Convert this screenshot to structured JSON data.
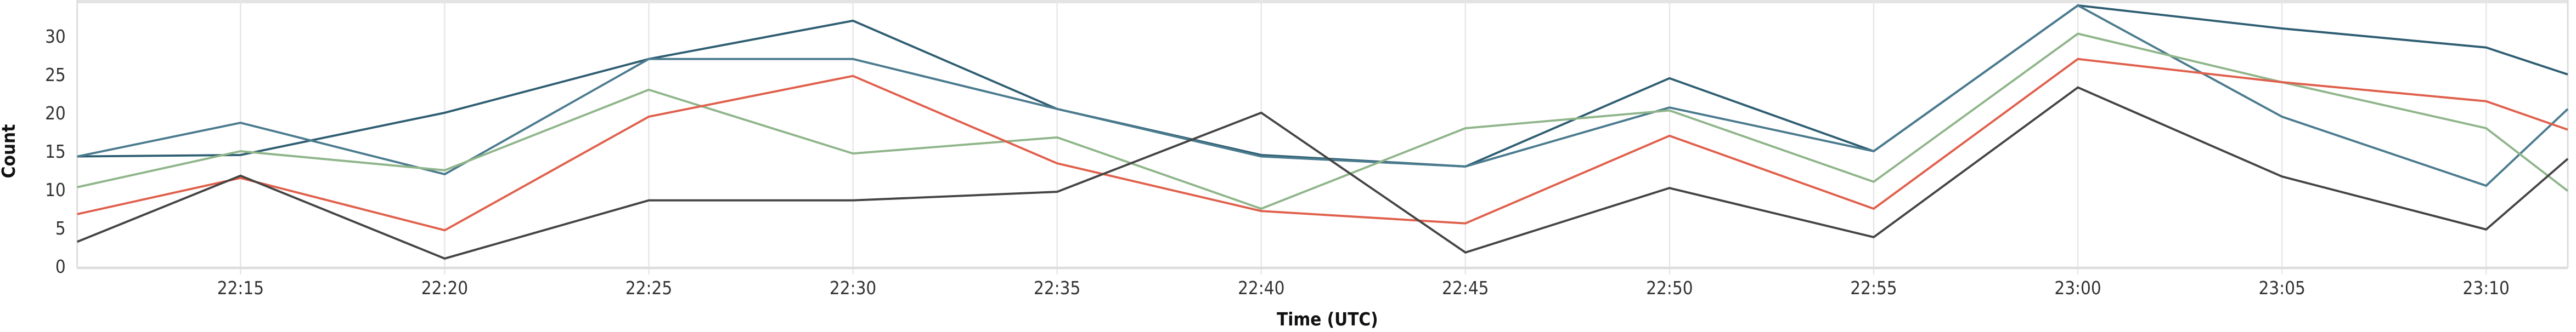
{
  "chart_data": {
    "type": "line",
    "title": "",
    "xlabel": "Time (UTC)",
    "ylabel": "Count",
    "x": [
      "22:11",
      "22:15",
      "22:20",
      "22:25",
      "22:30",
      "22:35",
      "22:40",
      "22:45",
      "22:50",
      "22:55",
      "23:00",
      "23:05",
      "23:10",
      "23:12"
    ],
    "xlim": [
      "22:11",
      "23:12"
    ],
    "ylim": [
      0,
      34.7
    ],
    "x_ticks": [
      "22:15",
      "22:20",
      "22:25",
      "22:30",
      "22:35",
      "22:40",
      "22:45",
      "22:50",
      "22:55",
      "23:00",
      "23:05",
      "23:10"
    ],
    "y_ticks": [
      0,
      5,
      10,
      15,
      20,
      25,
      30
    ],
    "grid": "vertical",
    "legend": "none",
    "series": [
      {
        "color": "#2f5e72",
        "values": [
          14.3,
          14.5,
          20,
          27,
          32,
          20.5,
          14.5,
          13,
          24.5,
          15,
          34,
          31,
          28.5,
          25
        ]
      },
      {
        "color": "#4b7b8e",
        "values": [
          14.3,
          18.7,
          12,
          27,
          27,
          20.5,
          14.3,
          13,
          20.7,
          15,
          34,
          19.5,
          10.5,
          20.5
        ]
      },
      {
        "color": "#8fb58a",
        "values": [
          10.3,
          15,
          12.5,
          23,
          14.7,
          16.8,
          7.5,
          18,
          20.3,
          11,
          30.3,
          24,
          18,
          9.8
        ]
      },
      {
        "color": "#e0604c",
        "values": [
          6.8,
          11.5,
          4.7,
          19.5,
          24.8,
          13.4,
          7.2,
          5.6,
          17,
          7.5,
          27,
          24,
          21.5,
          17.8
        ]
      },
      {
        "color": "#444444",
        "values": [
          3.2,
          11.8,
          1,
          8.6,
          8.6,
          9.7,
          20,
          1.8,
          10.2,
          3.8,
          23.3,
          11.7,
          4.8,
          14
        ]
      }
    ]
  }
}
